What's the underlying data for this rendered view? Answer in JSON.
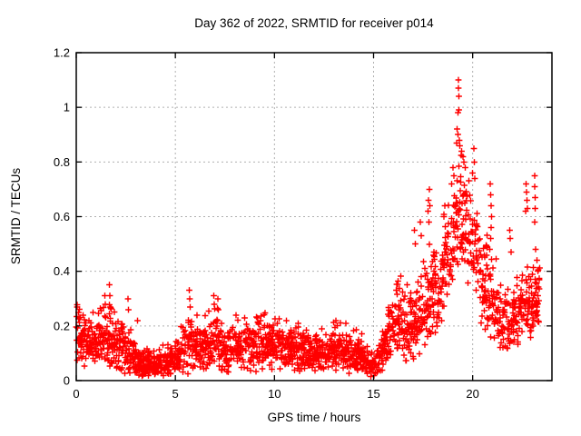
{
  "chart_data": {
    "type": "scatter",
    "title": "Day 362 of 2022, SRMTID for receiver p014",
    "xlabel": "GPS time / hours",
    "ylabel": "SRMTID / TECUs",
    "xlim": [
      0,
      24
    ],
    "ylim": [
      0,
      1.2
    ],
    "xticks": [
      0,
      5,
      10,
      15,
      20
    ],
    "xtick_labels": [
      "0",
      "5",
      "10",
      "15",
      "20"
    ],
    "yticks": [
      0,
      0.2,
      0.4,
      0.6,
      0.8,
      1.0,
      1.2
    ],
    "ytick_labels": [
      "0",
      "0.2",
      "0.4",
      "0.6",
      "0.8",
      "1",
      "1.2"
    ],
    "grid": true,
    "legend": "none",
    "marker": "plus",
    "marker_color": "#ff0000",
    "grid_color": "#b0b0b0",
    "border_color": "#000000",
    "series_name": "SRMTID",
    "x_start": 0.0,
    "x_end": 23.4,
    "envelope_format": [
      "hour",
      "center_TECU",
      "half_spread_TECU"
    ],
    "envelope": [
      [
        0.0,
        0.16,
        0.09
      ],
      [
        0.3,
        0.15,
        0.08
      ],
      [
        0.7,
        0.13,
        0.07
      ],
      [
        1.0,
        0.14,
        0.08
      ],
      [
        1.5,
        0.14,
        0.09
      ],
      [
        2.0,
        0.12,
        0.08
      ],
      [
        2.5,
        0.11,
        0.07
      ],
      [
        3.0,
        0.08,
        0.05
      ],
      [
        3.5,
        0.06,
        0.04
      ],
      [
        4.0,
        0.06,
        0.04
      ],
      [
        4.6,
        0.07,
        0.04
      ],
      [
        5.0,
        0.09,
        0.05
      ],
      [
        5.5,
        0.11,
        0.07
      ],
      [
        5.8,
        0.13,
        0.09
      ],
      [
        6.1,
        0.1,
        0.06
      ],
      [
        6.5,
        0.12,
        0.07
      ],
      [
        6.9,
        0.15,
        0.09
      ],
      [
        7.2,
        0.13,
        0.08
      ],
      [
        7.6,
        0.1,
        0.06
      ],
      [
        8.0,
        0.12,
        0.07
      ],
      [
        8.5,
        0.13,
        0.08
      ],
      [
        9.0,
        0.12,
        0.07
      ],
      [
        9.5,
        0.13,
        0.07
      ],
      [
        10.0,
        0.12,
        0.07
      ],
      [
        10.5,
        0.11,
        0.06
      ],
      [
        11.0,
        0.12,
        0.07
      ],
      [
        11.5,
        0.1,
        0.07
      ],
      [
        12.0,
        0.09,
        0.06
      ],
      [
        12.5,
        0.1,
        0.06
      ],
      [
        13.0,
        0.11,
        0.07
      ],
      [
        13.5,
        0.1,
        0.06
      ],
      [
        14.0,
        0.1,
        0.06
      ],
      [
        14.5,
        0.08,
        0.05
      ],
      [
        14.9,
        0.05,
        0.03
      ],
      [
        15.2,
        0.07,
        0.05
      ],
      [
        15.6,
        0.13,
        0.07
      ],
      [
        16.0,
        0.2,
        0.1
      ],
      [
        16.4,
        0.21,
        0.11
      ],
      [
        16.8,
        0.19,
        0.1
      ],
      [
        17.2,
        0.23,
        0.11
      ],
      [
        17.6,
        0.27,
        0.12
      ],
      [
        18.0,
        0.31,
        0.13
      ],
      [
        18.4,
        0.37,
        0.14
      ],
      [
        18.8,
        0.45,
        0.15
      ],
      [
        19.1,
        0.55,
        0.17
      ],
      [
        19.35,
        0.62,
        0.19
      ],
      [
        19.6,
        0.57,
        0.16
      ],
      [
        19.9,
        0.5,
        0.15
      ],
      [
        20.2,
        0.42,
        0.15
      ],
      [
        20.6,
        0.34,
        0.14
      ],
      [
        21.0,
        0.28,
        0.13
      ],
      [
        21.4,
        0.22,
        0.11
      ],
      [
        21.8,
        0.2,
        0.1
      ],
      [
        22.2,
        0.24,
        0.1
      ],
      [
        22.6,
        0.27,
        0.11
      ],
      [
        23.0,
        0.28,
        0.1
      ],
      [
        23.4,
        0.3,
        0.1
      ]
    ],
    "outlier_points": [
      [
        0.05,
        0.27
      ],
      [
        0.12,
        0.25
      ],
      [
        0.35,
        0.24
      ],
      [
        1.45,
        0.31
      ],
      [
        1.47,
        0.28
      ],
      [
        1.68,
        0.35
      ],
      [
        1.7,
        0.31
      ],
      [
        1.72,
        0.27
      ],
      [
        2.62,
        0.3
      ],
      [
        2.64,
        0.26
      ],
      [
        3.1,
        0.22
      ],
      [
        5.7,
        0.33
      ],
      [
        5.72,
        0.3
      ],
      [
        5.74,
        0.27
      ],
      [
        6.1,
        0.24
      ],
      [
        6.95,
        0.31
      ],
      [
        6.97,
        0.28
      ],
      [
        7.15,
        0.3
      ],
      [
        7.17,
        0.26
      ],
      [
        8.05,
        0.24
      ],
      [
        8.5,
        0.23
      ],
      [
        9.3,
        0.22
      ],
      [
        10.6,
        0.22
      ],
      [
        11.2,
        0.21
      ],
      [
        13.1,
        0.22
      ],
      [
        13.6,
        0.21
      ],
      [
        16.15,
        0.33
      ],
      [
        16.7,
        0.35
      ],
      [
        17.05,
        0.55
      ],
      [
        17.1,
        0.5
      ],
      [
        17.35,
        0.58
      ],
      [
        17.4,
        0.53
      ],
      [
        17.75,
        0.62
      ],
      [
        17.78,
        0.66
      ],
      [
        17.82,
        0.7
      ],
      [
        17.85,
        0.64
      ],
      [
        17.8,
        0.58
      ],
      [
        18.55,
        0.6
      ],
      [
        18.6,
        0.64
      ],
      [
        18.95,
        0.72
      ],
      [
        19.0,
        0.78
      ],
      [
        19.05,
        0.75
      ],
      [
        19.27,
        0.98
      ],
      [
        19.28,
        1.1
      ],
      [
        19.29,
        1.07
      ],
      [
        19.3,
        1.04
      ],
      [
        19.31,
        0.99
      ],
      [
        19.22,
        0.92
      ],
      [
        19.25,
        0.9
      ],
      [
        19.33,
        0.88
      ],
      [
        19.35,
        0.86
      ],
      [
        19.18,
        0.87
      ],
      [
        19.45,
        0.84
      ],
      [
        19.5,
        0.82
      ],
      [
        19.55,
        0.8
      ],
      [
        19.62,
        0.78
      ],
      [
        20.0,
        0.76
      ],
      [
        20.05,
        0.85
      ],
      [
        20.08,
        0.8
      ],
      [
        20.1,
        0.74
      ],
      [
        20.86,
        0.48
      ],
      [
        20.88,
        0.72
      ],
      [
        20.9,
        0.68
      ],
      [
        20.9,
        0.52
      ],
      [
        20.92,
        0.64
      ],
      [
        20.94,
        0.56
      ],
      [
        20.96,
        0.6
      ],
      [
        21.88,
        0.55
      ],
      [
        21.9,
        0.52
      ],
      [
        21.94,
        0.47
      ],
      [
        22.68,
        0.62
      ],
      [
        22.7,
        0.72
      ],
      [
        22.72,
        0.69
      ],
      [
        22.74,
        0.66
      ],
      [
        22.76,
        0.63
      ],
      [
        23.12,
        0.75
      ],
      [
        23.14,
        0.71
      ],
      [
        23.16,
        0.67
      ],
      [
        23.15,
        0.63
      ],
      [
        23.13,
        0.58
      ],
      [
        23.17,
        0.48
      ],
      [
        23.25,
        0.44
      ],
      [
        23.28,
        0.4
      ]
    ]
  }
}
